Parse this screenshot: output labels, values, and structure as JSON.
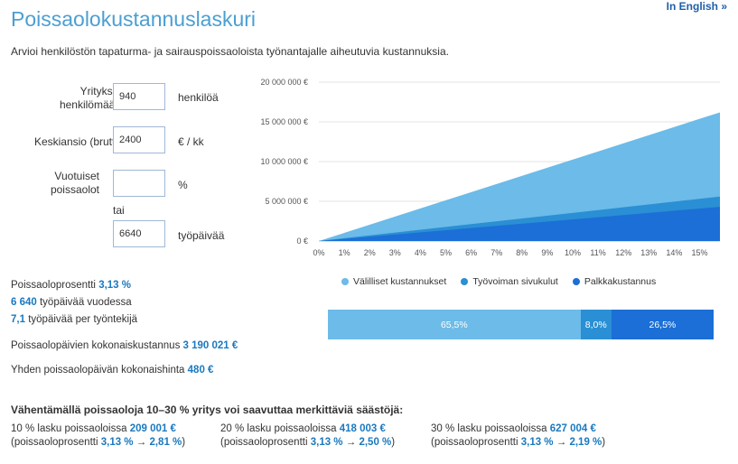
{
  "header": {
    "title": "Poissaolokustannuslaskuri",
    "english_link": "In English »",
    "subtitle": "Arvioi henkilöstön tapaturma- ja sairauspoissaoloista työnantajalle aiheutuvia kustannuksia."
  },
  "form": {
    "headcount": {
      "label_line1": "Yrityksen",
      "label_line2": "henkilömäärä",
      "value": "940",
      "unit": "henkilöä"
    },
    "salary": {
      "label": "Keskiansio (brutto)",
      "value": "2400",
      "unit": "€ / kk"
    },
    "absence_pct": {
      "label_line1": "Vuotuiset",
      "label_line2": "poissaolot",
      "value": "",
      "unit": "%"
    },
    "or_label": "tai",
    "absence_days": {
      "value": "6640",
      "unit": "työpäivää"
    }
  },
  "stats": {
    "pct_label": "Poissaoloprosentti",
    "pct_value": "3,13 %",
    "days_value": "6 640",
    "days_label": "työpäivää vuodessa",
    "per_emp_value": "7,1",
    "per_emp_label": "työpäivää per työntekijä",
    "total_label": "Poissaolopäivien kokonaiskustannus",
    "total_value": "3 190 021 €",
    "daily_label": "Yhden poissaolopäivän kokonaishinta",
    "daily_value": "480 €"
  },
  "legend": {
    "indirect": "Välilliset kustannukset",
    "side": "Työvoiman sivukulut",
    "salary": "Palkkakustannus"
  },
  "colors": {
    "indirect": "#6cbbe8",
    "side": "#2a8fd4",
    "salary": "#1b6fd6",
    "accent": "#1a79bf"
  },
  "share_bar": {
    "indirect_pct": "65,5%",
    "indirect_frac": 0.655,
    "side_pct": "8,0%",
    "side_frac": 0.08,
    "salary_pct": "26,5%",
    "salary_frac": 0.265
  },
  "savings": {
    "heading": "Vähentämällä poissaoloja 10–30 % yritys voi saavuttaa merkittäviä säästöjä:",
    "items": [
      {
        "label": "10 % lasku poissaoloissa",
        "value": "209 001 €",
        "pct_prefix": "(poissaoloprosentti",
        "pct_from": "3,13 %",
        "arrow": "→",
        "pct_to": "2,81 %",
        "suffix": ")"
      },
      {
        "label": "20 % lasku poissaoloissa",
        "value": "418 003 €",
        "pct_prefix": "(poissaoloprosentti",
        "pct_from": "3,13 %",
        "arrow": "→",
        "pct_to": "2,50 %",
        "suffix": ")"
      },
      {
        "label": "30 % lasku poissaoloissa",
        "value": "627 004 €",
        "pct_prefix": "(poissaoloprosentti",
        "pct_from": "3,13 %",
        "arrow": "→",
        "pct_to": "2,19 %",
        "suffix": ")"
      }
    ]
  },
  "chart_data": {
    "type": "area",
    "stacked": true,
    "x_ticks": [
      "0%",
      "1%",
      "2%",
      "3%",
      "4%",
      "5%",
      "6%",
      "7%",
      "8%",
      "9%",
      "10%",
      "11%",
      "12%",
      "13%",
      "14%",
      "15%"
    ],
    "x_range": [
      0,
      15.8
    ],
    "y_ticks": [
      "0 €",
      "5 000 000 €",
      "10 000 000 €",
      "15 000 000 €",
      "20 000 000 €"
    ],
    "y_tick_values": [
      0,
      5000000,
      10000000,
      15000000,
      20000000
    ],
    "ylim": [
      0,
      20000000
    ],
    "series": [
      {
        "name": "Palkkakustannus",
        "values_at_x": [
          [
            0,
            0
          ],
          [
            15.8,
            4300000
          ]
        ]
      },
      {
        "name": "Työvoiman sivukulut",
        "values_at_x": [
          [
            0,
            0
          ],
          [
            15.8,
            1300000
          ]
        ]
      },
      {
        "name": "Välilliset kustannukset",
        "values_at_x": [
          [
            0,
            0
          ],
          [
            15.8,
            10600000
          ]
        ]
      }
    ],
    "grid": "horizontal",
    "legend_position": "bottom"
  }
}
